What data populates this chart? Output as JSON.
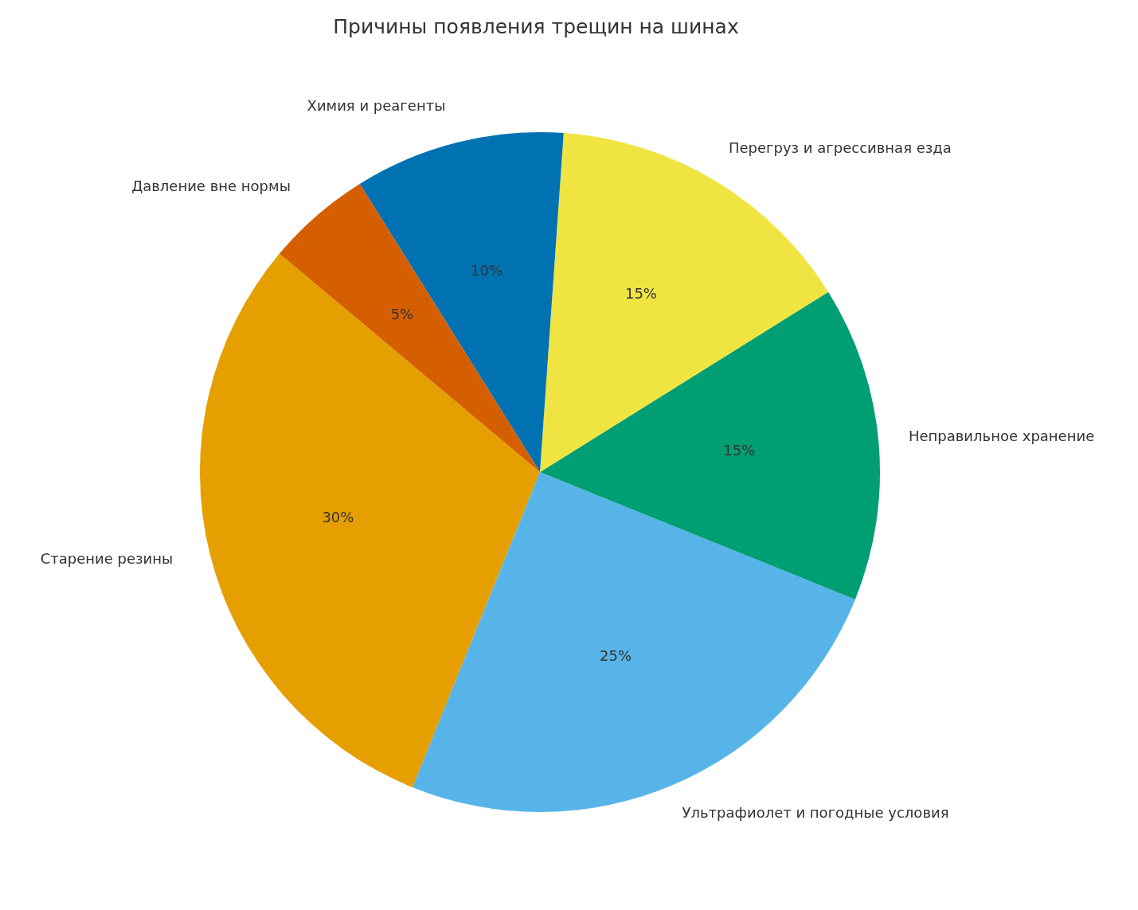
{
  "chart_data": {
    "type": "pie",
    "title": "Причины появления трещин на шинах",
    "categories": [
      "Старение резины",
      "Ультрафиолет и погодные условия",
      "Неправильное хранение",
      "Перегруз и агрессивная езда",
      "Химия и реагенты",
      "Давление вне нормы"
    ],
    "values": [
      30,
      25,
      15,
      15,
      10,
      5
    ],
    "value_labels": [
      "30%",
      "25%",
      "15%",
      "15%",
      "10%",
      "5%"
    ],
    "colors": [
      "#e69f00",
      "#56b4e9",
      "#009e73",
      "#f0e442",
      "#0072b2",
      "#d55e00"
    ],
    "legend": false
  }
}
